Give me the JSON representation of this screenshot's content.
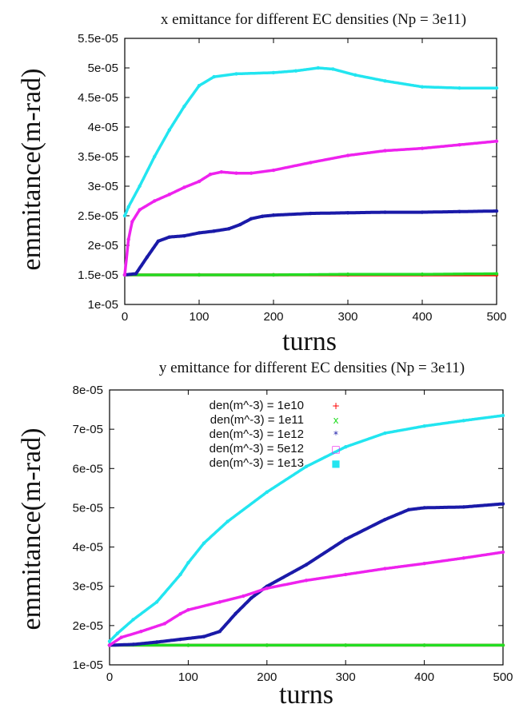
{
  "chart_data": [
    {
      "type": "scatter",
      "title": "x emittance for different EC densities (Np = 3e11)",
      "xlabel": "turns",
      "ylabel": "emmitance(m-rad)",
      "xlim": [
        0,
        500
      ],
      "ylim": [
        1e-05,
        5.5e-05
      ],
      "xticks": [
        "0",
        "100",
        "200",
        "300",
        "400",
        "500"
      ],
      "yticks": [
        "1e-05",
        "1.5e-05",
        "2e-05",
        "2.5e-05",
        "3e-05",
        "3.5e-05",
        "4e-05",
        "4.5e-05",
        "5e-05",
        "5.5e-05"
      ],
      "legend": "none",
      "series": [
        {
          "name": "den(m^-3) = 1e10",
          "color": "#ff0000",
          "x": [
            0,
            100,
            200,
            300,
            400,
            500
          ],
          "values": [
            1.5e-05,
            1.5e-05,
            1.5e-05,
            1.5e-05,
            1.5e-05,
            1.5e-05
          ]
        },
        {
          "name": "den(m^-3) = 1e11",
          "color": "#22dd22",
          "x": [
            0,
            100,
            200,
            300,
            400,
            500
          ],
          "values": [
            1.5e-05,
            1.5e-05,
            1.5e-05,
            1.51e-05,
            1.51e-05,
            1.52e-05
          ]
        },
        {
          "name": "den(m^-3) = 1e12",
          "color": "#1a1aa8",
          "x": [
            0,
            15,
            30,
            45,
            60,
            80,
            100,
            120,
            140,
            155,
            170,
            185,
            200,
            250,
            300,
            350,
            400,
            450,
            500
          ],
          "values": [
            1.5e-05,
            1.52e-05,
            1.8e-05,
            2.07e-05,
            2.14e-05,
            2.16e-05,
            2.21e-05,
            2.24e-05,
            2.28e-05,
            2.35e-05,
            2.45e-05,
            2.49e-05,
            2.51e-05,
            2.54e-05,
            2.55e-05,
            2.56e-05,
            2.56e-05,
            2.57e-05,
            2.58e-05
          ]
        },
        {
          "name": "den(m^-3) = 5e12",
          "color": "#ee22ee",
          "x": [
            0,
            5,
            10,
            20,
            40,
            60,
            80,
            100,
            115,
            130,
            150,
            170,
            200,
            250,
            300,
            350,
            400,
            450,
            500
          ],
          "values": [
            1.5e-05,
            2.1e-05,
            2.4e-05,
            2.6e-05,
            2.75e-05,
            2.86e-05,
            2.98e-05,
            3.08e-05,
            3.2e-05,
            3.24e-05,
            3.22e-05,
            3.22e-05,
            3.27e-05,
            3.4e-05,
            3.52e-05,
            3.6e-05,
            3.64e-05,
            3.7e-05,
            3.76e-05
          ]
        },
        {
          "name": "den(m^-3) = 1e13",
          "color": "#22e5f0",
          "x": [
            0,
            5,
            20,
            40,
            60,
            80,
            100,
            120,
            150,
            200,
            230,
            260,
            280,
            310,
            350,
            400,
            450,
            500
          ],
          "values": [
            2.5e-05,
            2.65e-05,
            3e-05,
            3.5e-05,
            3.95e-05,
            4.35e-05,
            4.7e-05,
            4.85e-05,
            4.9e-05,
            4.92e-05,
            4.95e-05,
            5e-05,
            4.98e-05,
            4.88e-05,
            4.78e-05,
            4.68e-05,
            4.66e-05,
            4.66e-05
          ]
        }
      ]
    },
    {
      "type": "scatter",
      "title": "y emittance for different EC densities (Np = 3e11)",
      "xlabel": "turns",
      "ylabel": "emmitance(m-rad)",
      "xlim": [
        0,
        500
      ],
      "ylim": [
        1e-05,
        8e-05
      ],
      "xticks": [
        "0",
        "100",
        "200",
        "300",
        "400",
        "500"
      ],
      "yticks": [
        "1e-05",
        "2e-05",
        "3e-05",
        "4e-05",
        "5e-05",
        "6e-05",
        "7e-05",
        "8e-05"
      ],
      "legend": "top-left",
      "series": [
        {
          "name": "den(m^-3) = 1e10",
          "color": "#ff0000",
          "marker": "+",
          "x": [
            0,
            100,
            200,
            300,
            400,
            500
          ],
          "values": [
            1.5e-05,
            1.5e-05,
            1.5e-05,
            1.5e-05,
            1.5e-05,
            1.5e-05
          ]
        },
        {
          "name": "den(m^-3) = 1e11",
          "color": "#22dd22",
          "marker": "x",
          "x": [
            0,
            100,
            200,
            300,
            400,
            500
          ],
          "values": [
            1.5e-05,
            1.5e-05,
            1.5e-05,
            1.5e-05,
            1.5e-05,
            1.5e-05
          ]
        },
        {
          "name": "den(m^-3) = 1e12",
          "color": "#1a1aa8",
          "marker": "*",
          "x": [
            0,
            30,
            60,
            90,
            120,
            140,
            160,
            180,
            200,
            250,
            300,
            350,
            380,
            400,
            450,
            500
          ],
          "values": [
            1.5e-05,
            1.52e-05,
            1.58e-05,
            1.65e-05,
            1.72e-05,
            1.85e-05,
            2.3e-05,
            2.7e-05,
            3e-05,
            3.55e-05,
            4.2e-05,
            4.7e-05,
            4.95e-05,
            5e-05,
            5.02e-05,
            5.1e-05
          ]
        },
        {
          "name": "den(m^-3) = 5e12",
          "color": "#ee22ee",
          "marker": "□",
          "x": [
            0,
            15,
            40,
            70,
            90,
            100,
            140,
            170,
            200,
            250,
            300,
            350,
            400,
            450,
            500
          ],
          "values": [
            1.5e-05,
            1.7e-05,
            1.85e-05,
            2.05e-05,
            2.3e-05,
            2.4e-05,
            2.6e-05,
            2.75e-05,
            2.95e-05,
            3.15e-05,
            3.3e-05,
            3.45e-05,
            3.58e-05,
            3.72e-05,
            3.87e-05
          ]
        },
        {
          "name": "den(m^-3) = 1e13",
          "color": "#22e5f0",
          "marker": "■",
          "x": [
            0,
            10,
            30,
            60,
            90,
            100,
            120,
            150,
            200,
            250,
            300,
            350,
            400,
            450,
            500
          ],
          "values": [
            1.6e-05,
            1.8e-05,
            2.15e-05,
            2.6e-05,
            3.3e-05,
            3.6e-05,
            4.1e-05,
            4.65e-05,
            5.4e-05,
            6.05e-05,
            6.55e-05,
            6.9e-05,
            7.08e-05,
            7.22e-05,
            7.35e-05
          ]
        }
      ]
    }
  ]
}
